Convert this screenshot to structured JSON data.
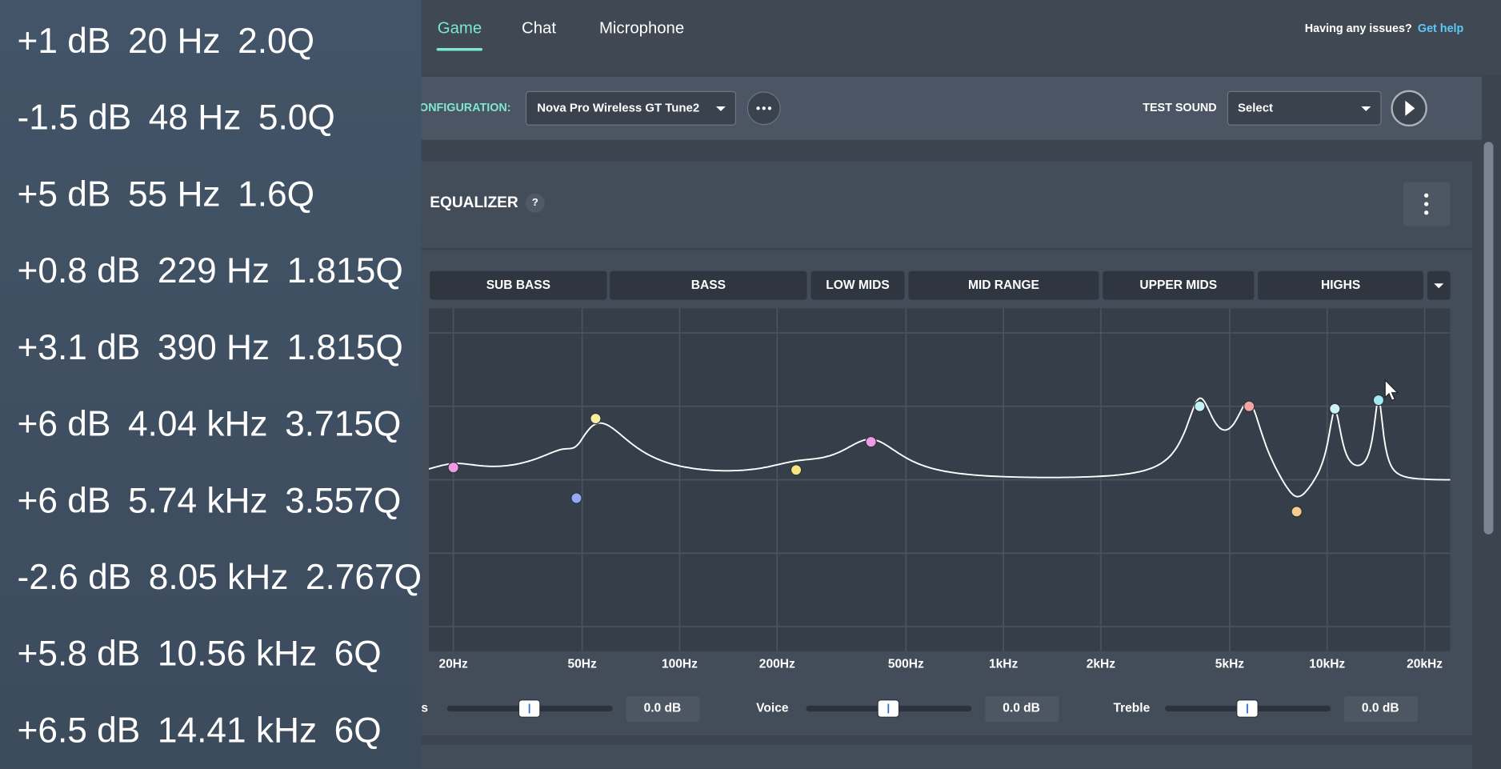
{
  "overlay": {
    "rows": [
      {
        "gain": {
          "value": 1,
          "label": "+1 dB"
        },
        "freq": {
          "value": 20,
          "label": "20 Hz"
        },
        "q": {
          "value": 2,
          "label": "2.0Q"
        }
      },
      {
        "gain": {
          "value": -1.5,
          "label": "-1.5 dB"
        },
        "freq": {
          "value": 48,
          "label": "48 Hz"
        },
        "q": {
          "value": 5,
          "label": "5.0Q"
        }
      },
      {
        "gain": {
          "value": 5,
          "label": "+5 dB"
        },
        "freq": {
          "value": 55,
          "label": "55 Hz"
        },
        "q": {
          "value": 1.6,
          "label": "1.6Q"
        }
      },
      {
        "gain": {
          "value": 0.8,
          "label": "+0.8 dB"
        },
        "freq": {
          "value": 229,
          "label": "229 Hz"
        },
        "q": {
          "value": 1.815,
          "label": "1.815Q"
        }
      },
      {
        "gain": {
          "value": 3.1,
          "label": "+3.1 dB"
        },
        "freq": {
          "value": 390,
          "label": "390 Hz"
        },
        "q": {
          "value": 1.815,
          "label": "1.815Q"
        }
      },
      {
        "gain": {
          "value": 6,
          "label": "+6 dB"
        },
        "freq": {
          "value": 4040,
          "label": "4.04 kHz"
        },
        "q": {
          "value": 3.715,
          "label": "3.715Q"
        }
      },
      {
        "gain": {
          "value": 6,
          "label": "+6 dB"
        },
        "freq": {
          "value": 5740,
          "label": "5.74 kHz"
        },
        "q": {
          "value": 3.557,
          "label": "3.557Q"
        }
      },
      {
        "gain": {
          "value": -2.6,
          "label": "-2.6 dB"
        },
        "freq": {
          "value": 8050,
          "label": "8.05 kHz"
        },
        "q": {
          "value": 2.767,
          "label": "2.767Q"
        }
      },
      {
        "gain": {
          "value": 5.8,
          "label": "+5.8 dB"
        },
        "freq": {
          "value": 10560,
          "label": "10.56 kHz"
        },
        "q": {
          "value": 6,
          "label": "6Q"
        }
      },
      {
        "gain": {
          "value": 6.5,
          "label": "+6.5 dB"
        },
        "freq": {
          "value": 14410,
          "label": "14.41 kHz"
        },
        "q": {
          "value": 6,
          "label": "6Q"
        }
      }
    ]
  },
  "tabs": [
    "Game",
    "Chat",
    "Microphone"
  ],
  "header": {
    "help_question": "Having any issues?",
    "help_link": "Get help"
  },
  "config": {
    "label": "ONFIGURATION:",
    "preset": "Nova Pro Wireless GT Tune2",
    "test_sound_label": "TEST SOUND",
    "test_sound_select": "Select"
  },
  "equalizer": {
    "title": "EQUALIZER",
    "help": "?",
    "bands": [
      "SUB BASS",
      "BASS",
      "LOW MIDS",
      "MID RANGE",
      "UPPER MIDS",
      "HIGHS"
    ],
    "chart": {
      "x_log": true,
      "xlim": [
        16.8,
        24000
      ],
      "ylim": [
        -14,
        14
      ],
      "yticks": [
        -12,
        -6,
        0,
        6,
        12
      ],
      "xticks": [
        {
          "value": 20,
          "label": "20Hz"
        },
        {
          "value": 50,
          "label": "50Hz"
        },
        {
          "value": 100,
          "label": "100Hz"
        },
        {
          "value": 200,
          "label": "200Hz"
        },
        {
          "value": 500,
          "label": "500Hz"
        },
        {
          "value": 1000,
          "label": "1kHz"
        },
        {
          "value": 2000,
          "label": "2kHz"
        },
        {
          "value": 5000,
          "label": "5kHz"
        },
        {
          "value": 10000,
          "label": "10kHz"
        },
        {
          "value": 20000,
          "label": "20kHz"
        }
      ],
      "dot_colors": [
        "#f09ae6",
        "#93a9f5",
        "#f6ef9e",
        "#f6e47e",
        "#f09ae6",
        "#c2f1f6",
        "#f3a4a4",
        "#f6cc8e",
        "#cdf3f8",
        "#a2e9f6"
      ],
      "curve_color": "#ffffff"
    }
  },
  "sliders": [
    {
      "label": "s",
      "value": "0.0 dB"
    },
    {
      "label": "Voice",
      "value": "0.0 dB"
    },
    {
      "label": "Treble",
      "value": "0.0 dB"
    }
  ]
}
